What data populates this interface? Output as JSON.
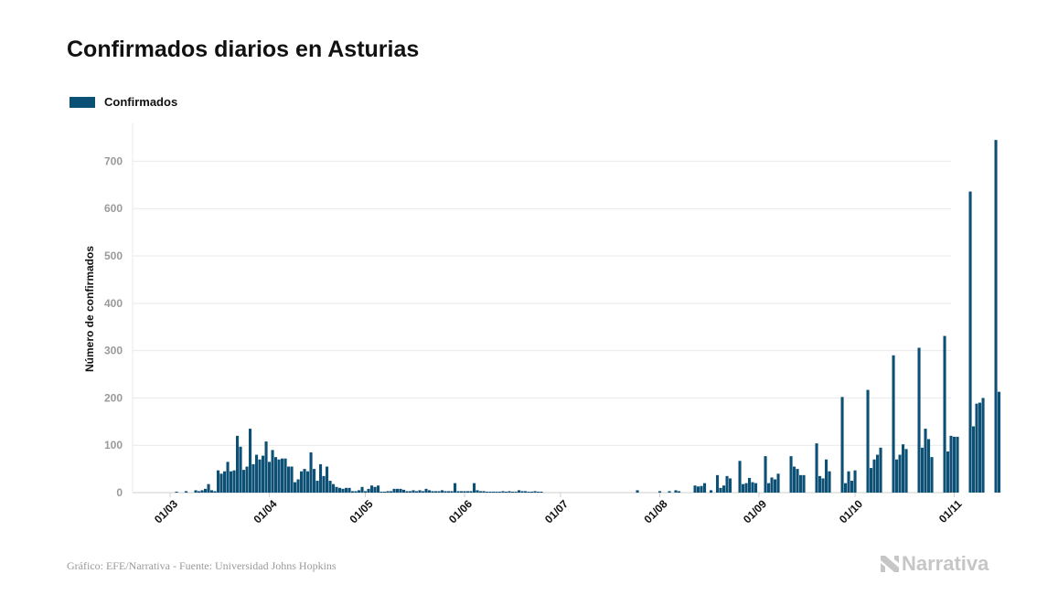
{
  "title": "Confirmados diarios en Asturias",
  "legend": {
    "label": "Confirmados"
  },
  "source": "Gráfico: EFE/Narrativa - Fuente: Universidad Johns Hopkins",
  "brand": {
    "name": "Narrativa",
    "icon": "narrativa-logo-icon"
  },
  "colors": {
    "bar": "#0c5075",
    "grid": "#e9e9e9",
    "tick": "#9a9a9a",
    "axis_label": "#111111"
  },
  "chart_data": {
    "type": "bar",
    "title": "Confirmados diarios en Asturias",
    "xlabel": "",
    "ylabel": "Número de confirmados",
    "x_start": "2020-02-26",
    "x_ticks": [
      "01/03",
      "01/04",
      "01/05",
      "01/06",
      "01/07",
      "01/08",
      "01/09",
      "01/10",
      "01/11"
    ],
    "y_ticks": [
      0,
      100,
      200,
      300,
      400,
      500,
      600,
      700
    ],
    "ylim": [
      0,
      780
    ],
    "grid": true,
    "legend_position": "top-left",
    "series": [
      {
        "name": "Confirmados",
        "values": [
          0,
          0,
          0,
          0,
          0,
          0,
          2,
          0,
          0,
          3,
          0,
          0,
          5,
          3,
          5,
          8,
          18,
          5,
          3,
          47,
          40,
          45,
          65,
          45,
          47,
          120,
          97,
          48,
          55,
          135,
          60,
          80,
          70,
          78,
          108,
          65,
          90,
          75,
          70,
          72,
          72,
          55,
          55,
          22,
          28,
          45,
          50,
          45,
          85,
          50,
          25,
          60,
          35,
          55,
          25,
          18,
          12,
          10,
          8,
          10,
          10,
          3,
          3,
          5,
          12,
          3,
          8,
          15,
          12,
          15,
          2,
          2,
          3,
          3,
          8,
          8,
          8,
          6,
          3,
          3,
          5,
          3,
          5,
          3,
          8,
          5,
          3,
          3,
          3,
          5,
          3,
          3,
          3,
          20,
          3,
          3,
          3,
          3,
          3,
          20,
          5,
          3,
          3,
          2,
          2,
          2,
          2,
          2,
          3,
          2,
          3,
          2,
          2,
          5,
          3,
          3,
          2,
          2,
          3,
          2,
          2,
          0,
          0,
          0,
          0,
          0,
          0,
          0,
          0,
          0,
          0,
          0,
          0,
          0,
          0,
          0,
          0,
          0,
          0,
          0,
          0,
          0,
          0,
          0,
          0,
          0,
          0,
          0,
          0,
          0,
          5,
          0,
          0,
          0,
          0,
          0,
          0,
          3,
          0,
          0,
          3,
          0,
          5,
          3,
          0,
          0,
          0,
          0,
          15,
          13,
          14,
          20,
          0,
          5,
          0,
          37,
          10,
          15,
          35,
          30,
          0,
          0,
          67,
          18,
          20,
          31,
          22,
          20,
          0,
          0,
          77,
          20,
          32,
          28,
          40,
          0,
          0,
          0,
          77,
          55,
          50,
          37,
          37,
          0,
          0,
          0,
          104,
          35,
          30,
          70,
          45,
          0,
          0,
          0,
          202,
          20,
          45,
          25,
          47,
          0,
          0,
          0,
          217,
          52,
          70,
          80,
          95,
          0,
          0,
          0,
          290,
          70,
          80,
          102,
          92,
          0,
          0,
          0,
          306,
          95,
          135,
          113,
          75,
          0,
          0,
          0,
          331,
          87,
          120,
          118,
          118,
          0,
          0,
          0,
          636,
          140,
          188,
          190,
          200,
          0,
          0,
          0,
          745,
          213
        ]
      }
    ]
  }
}
